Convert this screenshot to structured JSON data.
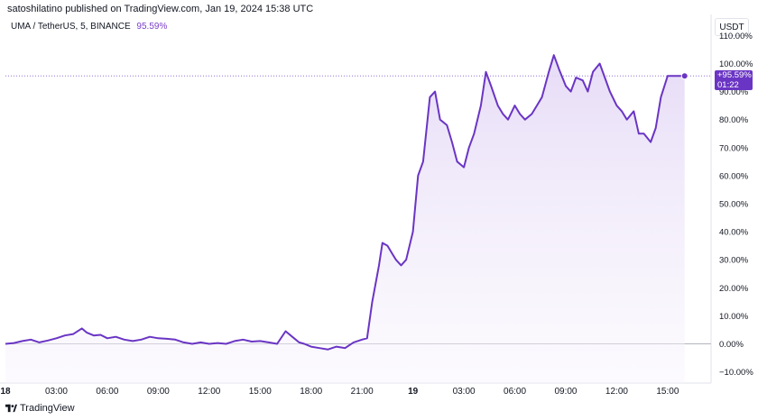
{
  "header": {
    "published_by": "satoshilatino published on TradingView.com, Jan 19, 2024 15:38 UTC"
  },
  "symbol": {
    "title": "UMA / TetherUS, 5, BINANCE",
    "change": "95.59%"
  },
  "axis": {
    "currency": "USDT"
  },
  "price_badge": {
    "value": "+95.59%",
    "time": "01:22"
  },
  "footer": {
    "brand": "TradingView"
  },
  "colors": {
    "line": "#6a35c4",
    "fill": "#ede6f7",
    "badge": "#6a35c4",
    "grid": "#f0f3fa",
    "text": "#131722"
  },
  "chart_data": {
    "type": "area",
    "title": "UMA / TetherUS, 5, BINANCE",
    "ylabel": "",
    "xlabel": "",
    "ylim": [
      -12,
      111
    ],
    "y_ticks": [
      -10,
      0,
      10,
      20,
      30,
      40,
      50,
      60,
      70,
      80,
      90,
      100,
      110
    ],
    "y_tick_labels": [
      "−10.00%",
      "0.00%",
      "10.00%",
      "20.00%",
      "30.00%",
      "40.00%",
      "50.00%",
      "60.00%",
      "70.00%",
      "80.00%",
      "90.00%",
      "100.00%",
      "110.00%"
    ],
    "x_ticks": [
      0,
      3,
      6,
      9,
      12,
      15,
      18,
      21,
      24,
      27,
      30,
      33,
      36,
      39
    ],
    "x_tick_labels": [
      "18",
      "03:00",
      "06:00",
      "09:00",
      "12:00",
      "15:00",
      "18:00",
      "21:00",
      "19",
      "03:00",
      "06:00",
      "09:00",
      "12:00",
      "15:00"
    ],
    "x_unit_note": "hours from Jan 18 00:00",
    "last_value": 95.59,
    "grid": false,
    "series": [
      {
        "x": [
          0,
          0.5,
          1,
          1.5,
          2,
          2.5,
          3,
          3.5,
          4,
          4.5,
          4.8,
          5.2,
          5.6,
          6,
          6.5,
          7,
          7.5,
          8,
          8.5,
          9,
          9.5,
          10,
          10.5,
          11,
          11.5,
          12,
          12.5,
          13,
          13.5,
          14,
          14.5,
          15,
          15.5,
          16,
          16.5,
          17,
          17.3,
          17.6,
          18,
          18.5,
          19,
          19.5,
          20,
          20.5,
          21,
          21.3,
          21.6,
          22,
          22.2,
          22.5,
          22.8,
          23,
          23.3,
          23.6,
          24,
          24.3,
          24.6,
          25,
          25.3,
          25.6,
          26,
          26.3,
          26.6,
          27,
          27.3,
          27.6,
          28,
          28.3,
          28.6,
          29,
          29.3,
          29.6,
          30,
          30.3,
          30.6,
          31,
          31.3,
          31.6,
          32,
          32.3,
          32.6,
          33,
          33.3,
          33.6,
          34,
          34.3,
          34.6,
          35,
          35.3,
          35.6,
          36,
          36.3,
          36.6,
          37,
          37.3,
          37.6,
          38,
          38.3,
          38.6,
          39,
          39.3,
          39.6,
          40
        ],
        "y": [
          0,
          0.3,
          1,
          1.5,
          0.5,
          1.2,
          2,
          3,
          3.5,
          5.5,
          4,
          3,
          3.2,
          2,
          2.5,
          1.5,
          1,
          1.5,
          2.5,
          2,
          1.8,
          1.5,
          0.5,
          0,
          0.5,
          0,
          0.3,
          0,
          1,
          1.5,
          0.8,
          1,
          0.5,
          0,
          4.5,
          2,
          0.5,
          0,
          -1,
          -1.5,
          -2,
          -1,
          -1.5,
          0.5,
          1.5,
          2,
          15,
          28,
          36,
          35,
          32,
          30,
          28,
          30,
          40,
          60,
          65,
          88,
          90,
          80,
          78,
          72,
          65,
          63,
          70,
          75,
          85,
          97,
          92,
          85,
          82,
          80,
          85,
          82,
          80,
          82,
          85,
          88,
          97,
          103,
          98,
          92,
          90,
          95,
          94,
          90,
          97,
          100,
          95,
          90,
          85,
          83,
          80,
          83,
          75,
          75,
          72,
          77,
          88,
          95.59,
          95.59,
          95.59,
          95.59
        ]
      }
    ]
  }
}
